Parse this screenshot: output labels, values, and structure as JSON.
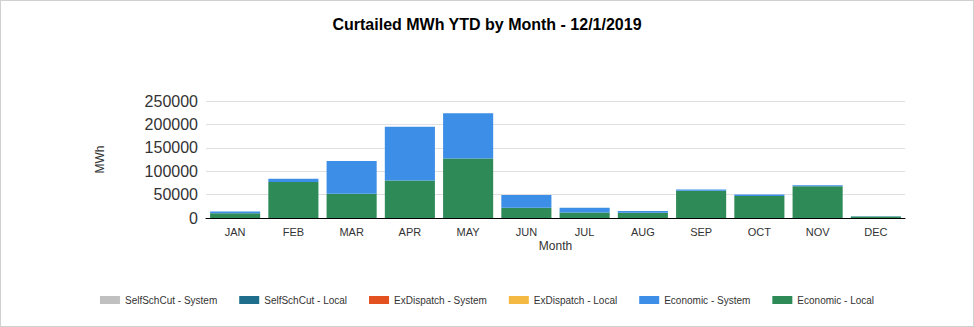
{
  "chart_data": {
    "type": "bar",
    "title": "Curtailed MWh YTD by Month - 12/1/2019",
    "x_label": "Month",
    "y_label": "MWh",
    "categories": [
      "JAN",
      "FEB",
      "MAR",
      "APR",
      "MAY",
      "JUN",
      "JUL",
      "AUG",
      "SEP",
      "OCT",
      "NOV",
      "DEC"
    ],
    "series": [
      {
        "name": "SelfSchCut - System",
        "color": "#c0c0c0",
        "values": [
          0,
          0,
          0,
          0,
          0,
          0,
          0,
          0,
          0,
          0,
          0,
          0
        ]
      },
      {
        "name": "SelfSchCut - Local",
        "color": "#1f6e8c",
        "values": [
          0,
          0,
          0,
          0,
          0,
          0,
          0,
          0,
          0,
          0,
          0,
          0
        ]
      },
      {
        "name": "ExDispatch - System",
        "color": "#e2511f",
        "values": [
          0,
          0,
          0,
          0,
          0,
          0,
          0,
          0,
          0,
          0,
          0,
          0
        ]
      },
      {
        "name": "ExDispatch - Local",
        "color": "#f4b942",
        "values": [
          0,
          0,
          0,
          0,
          0,
          0,
          0,
          0,
          0,
          0,
          0,
          0
        ]
      },
      {
        "name": "Economic - Local",
        "color": "#2e8b57",
        "values": [
          10000,
          77000,
          52000,
          80000,
          127000,
          22000,
          12000,
          11000,
          58000,
          47000,
          68000,
          3000
        ]
      },
      {
        "name": "Economic - System",
        "color": "#3d8ee6",
        "values": [
          4000,
          7000,
          70000,
          115000,
          97000,
          27000,
          10000,
          4000,
          3000,
          3000,
          2000,
          1000
        ]
      }
    ],
    "stacked": true,
    "ylim": [
      0,
      250000
    ],
    "yticks": [
      0,
      50000,
      100000,
      150000,
      200000,
      250000
    ],
    "grid": true,
    "legend": "bottom"
  }
}
